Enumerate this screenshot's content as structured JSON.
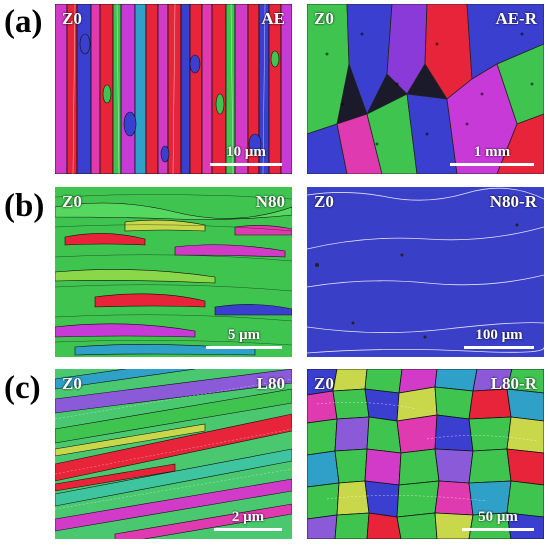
{
  "rows": [
    {
      "label": "(a)",
      "left": {
        "tag_left": "Z0",
        "tag_right": "AE",
        "scale": "10 μm"
      },
      "right": {
        "tag_left": "Z0",
        "tag_right": "AE-R",
        "scale": "1 mm"
      }
    },
    {
      "label": "(b)",
      "left": {
        "tag_left": "Z0",
        "tag_right": "N80",
        "scale": "5 μm"
      },
      "right": {
        "tag_left": "Z0",
        "tag_right": "N80-R",
        "scale": "100 μm"
      }
    },
    {
      "label": "(c)",
      "left": {
        "tag_left": "Z0",
        "tag_right": "L80",
        "scale": "2 μm"
      },
      "right": {
        "tag_left": "Z0",
        "tag_right": "L80-R",
        "scale": "50 μm"
      }
    }
  ],
  "colors": {
    "map_red": "#e8243a",
    "map_magenta": "#d23ac8",
    "map_blue": "#3b3fd0",
    "map_green": "#3fc450",
    "map_background_blue": "#3a3fc8"
  }
}
